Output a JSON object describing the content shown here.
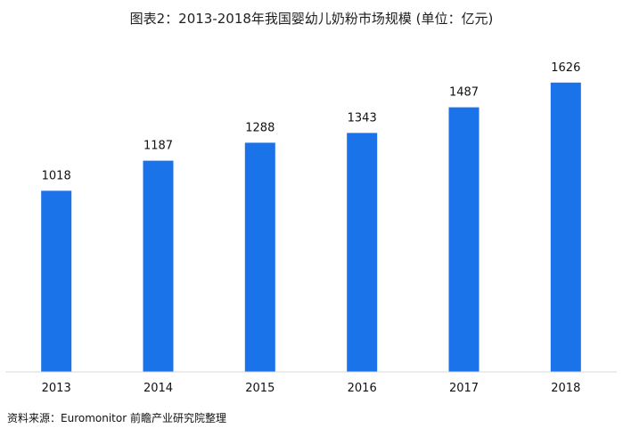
{
  "chart_data": {
    "type": "bar",
    "title": "图表2：2013-2018年我国婴幼儿奶粉市场规模 (单位：亿元)",
    "categories": [
      "2013",
      "2014",
      "2015",
      "2016",
      "2017",
      "2018"
    ],
    "values": [
      1018,
      1187,
      1288,
      1343,
      1487,
      1626
    ],
    "xlabel": "",
    "ylabel": "",
    "ylim": [
      0,
      1780
    ],
    "grid": false,
    "bar_color": "#1a73e8"
  },
  "source": "资料来源：Euromonitor 前瞻产业研究院整理"
}
